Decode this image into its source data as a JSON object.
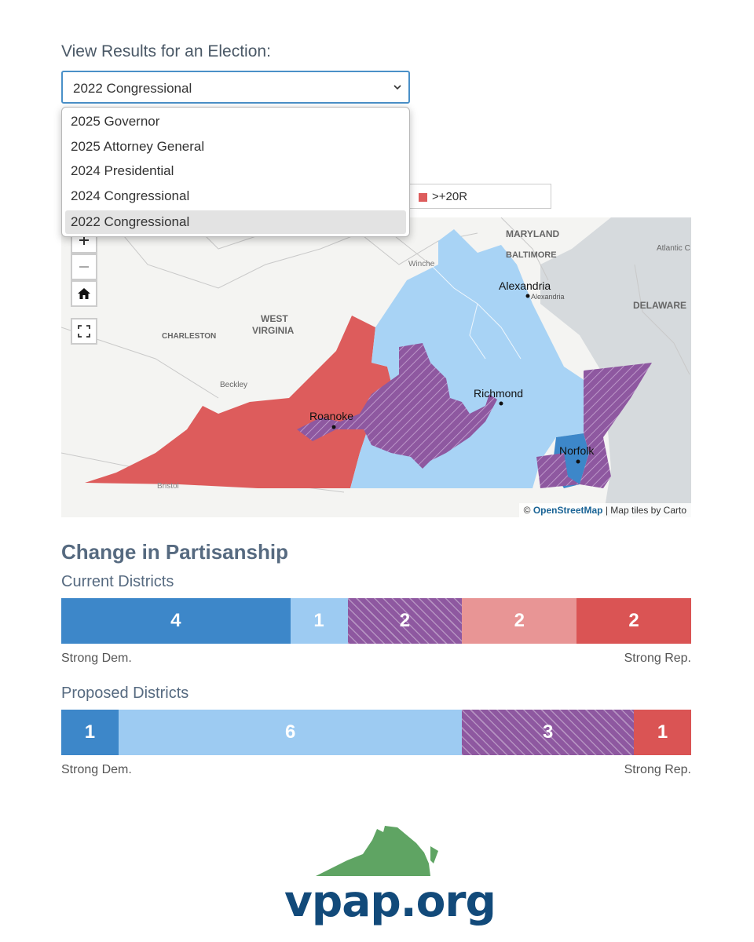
{
  "election_selector": {
    "label": "View Results for an Election:",
    "selected": "2022 Congressional",
    "options": [
      "2025 Governor",
      "2025 Attorney General",
      "2024 Presidential",
      "2024 Congressional",
      "2022 Congressional"
    ]
  },
  "legend": {
    "label": ">+20R",
    "color": "#dd5c5c"
  },
  "map": {
    "labels": {
      "maryland": "MARYLAND",
      "baltimore": "BALTIMORE",
      "atlantic_city": "Atlantic C",
      "winchester": "Winche",
      "alexandria": "Alexandria",
      "alexandria_small": "Alexandria",
      "delaware": "DELAWARE",
      "west_virginia_1": "WEST",
      "west_virginia_2": "VIRGINIA",
      "charleston": "CHARLESTON",
      "beckley": "Beckley",
      "roanoke": "Roanoke",
      "richmond": "Richmond",
      "norfolk": "Norfolk",
      "bristol": "Bristol"
    },
    "attribution_prefix": "©",
    "attribution_osm": "OpenStreetMap",
    "attribution_suffix": "| Map tiles by Carto",
    "colors": {
      "strong_rep": "#dd5c5c",
      "lean_dem": "#a8d3f5",
      "strong_dem": "#3d87c9",
      "tossup": "#8e58a0"
    }
  },
  "partisanship": {
    "title": "Change in Partisanship",
    "current": {
      "title": "Current Districts",
      "segments": [
        {
          "category": "strong-dem",
          "count": 4,
          "label": "4"
        },
        {
          "category": "lean-dem",
          "count": 1,
          "label": "1"
        },
        {
          "category": "tossup",
          "count": 2,
          "label": "2"
        },
        {
          "category": "lean-rep",
          "count": 2,
          "label": "2"
        },
        {
          "category": "strong-rep",
          "count": 2,
          "label": "2"
        }
      ],
      "left_label": "Strong Dem.",
      "right_label": "Strong Rep."
    },
    "proposed": {
      "title": "Proposed Districts",
      "segments": [
        {
          "category": "strong-dem",
          "count": 1,
          "label": "1"
        },
        {
          "category": "lean-dem",
          "count": 6,
          "label": "6"
        },
        {
          "category": "tossup",
          "count": 3,
          "label": "3"
        },
        {
          "category": "strong-rep",
          "count": 1,
          "label": "1"
        }
      ],
      "left_label": "Strong Dem.",
      "right_label": "Strong Rep."
    }
  },
  "logo": {
    "text": "vpap.org",
    "color": "#124a7a",
    "map_color": "#5fa463"
  }
}
